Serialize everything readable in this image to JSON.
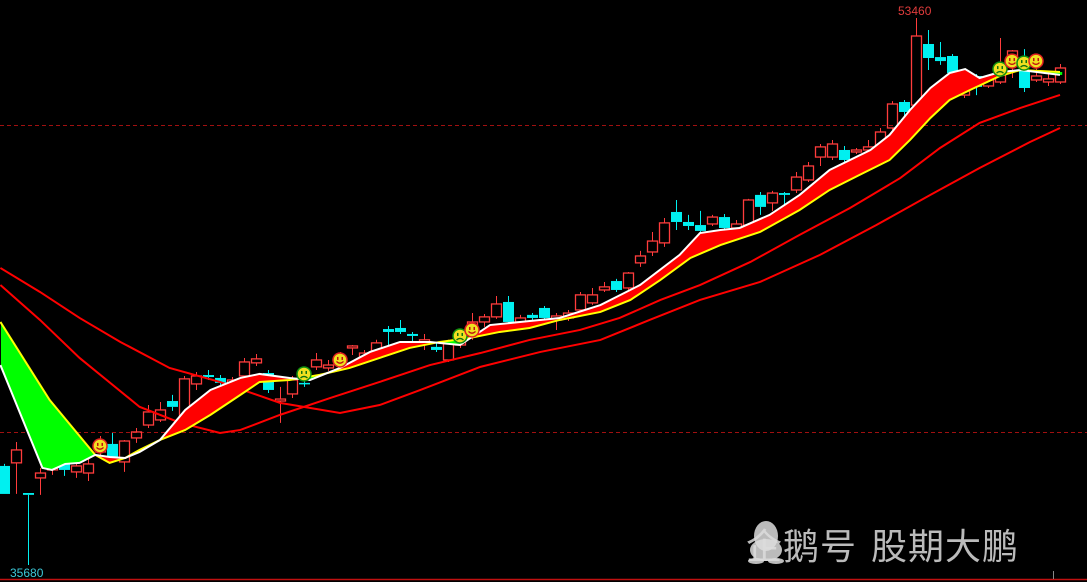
{
  "chart_data": {
    "type": "candlestick",
    "title": "",
    "labels": {
      "high": "53460",
      "low": "35680"
    },
    "price_extremes": {
      "high": 53460,
      "low": 35680
    },
    "reference_levels": [
      49980,
      40005
    ],
    "colors": {
      "up": "#ff3c3c",
      "down": "#00f0f0",
      "ma_short": "#ffffff",
      "ma_mid": "#ffff00",
      "ma_long": "#ff0000",
      "fill_up": "#ff0000",
      "fill_down": "#00ff00",
      "ref_line": "#a01010"
    },
    "candles": [
      [
        38900,
        37990,
        38965,
        37990
      ],
      [
        39000,
        39420,
        39680,
        37990
      ],
      [
        38020,
        37960,
        38020,
        35680
      ],
      [
        38510,
        38670,
        38835,
        37960
      ],
      [
        38770,
        39095,
        39260,
        38610
      ],
      [
        39030,
        38770,
        39160,
        38575
      ],
      [
        38705,
        38900,
        39030,
        38510
      ],
      [
        38670,
        38965,
        39130,
        38410
      ],
      [
        39355,
        39680,
        39875,
        39160
      ],
      [
        39615,
        39095,
        39970,
        39000
      ],
      [
        39030,
        39710,
        39745,
        38705
      ],
      [
        39810,
        40005,
        40135,
        39650
      ],
      [
        40230,
        40655,
        40880,
        40135
      ],
      [
        40395,
        40720,
        40980,
        40330
      ],
      [
        41010,
        40820,
        41210,
        40690
      ],
      [
        40200,
        41730,
        41825,
        40070
      ],
      [
        41565,
        41825,
        41955,
        41370
      ],
      [
        41855,
        41790,
        42020,
        41695
      ],
      [
        41760,
        41600,
        41855,
        41500
      ],
      [
        41530,
        41695,
        41790,
        41370
      ],
      [
        41825,
        42280,
        42410,
        41630
      ],
      [
        42250,
        42380,
        42540,
        42150
      ],
      [
        41920,
        41370,
        42020,
        41270
      ],
      [
        41010,
        41075,
        41470,
        40300
      ],
      [
        41240,
        41695,
        41825,
        41110
      ],
      [
        41600,
        41565,
        41760,
        41470
      ],
      [
        42120,
        42345,
        42570,
        42020
      ],
      [
        42085,
        42180,
        42345,
        41990
      ],
      [
        42280,
        42475,
        42605,
        42150
      ],
      [
        42735,
        42800,
        42830,
        42505
      ],
      [
        42345,
        42570,
        42670,
        42250
      ],
      [
        42570,
        42900,
        43000,
        42475
      ],
      [
        43350,
        43255,
        43450,
        42505
      ],
      [
        43385,
        43255,
        43645,
        43190
      ],
      [
        43190,
        43125,
        43255,
        42900
      ],
      [
        42930,
        43000,
        43190,
        42670
      ],
      [
        42770,
        42670,
        42900,
        42605
      ],
      [
        42345,
        42930,
        43000,
        42280
      ],
      [
        42830,
        43060,
        43160,
        42735
      ],
      [
        43125,
        43580,
        43870,
        43000
      ],
      [
        43580,
        43745,
        43840,
        43420
      ],
      [
        43745,
        44165,
        44425,
        43680
      ],
      [
        44230,
        43580,
        44425,
        43450
      ],
      [
        43580,
        43710,
        43810,
        43480
      ],
      [
        43810,
        43710,
        43870,
        43610
      ],
      [
        44035,
        43710,
        44100,
        43645
      ],
      [
        43645,
        43775,
        43870,
        43320
      ],
      [
        43710,
        43870,
        43970,
        43610
      ],
      [
        43970,
        44460,
        44555,
        43905
      ],
      [
        44200,
        44460,
        44685,
        44135
      ],
      [
        44620,
        44720,
        44880,
        44555
      ],
      [
        44910,
        44620,
        44980,
        44555
      ],
      [
        44685,
        45170,
        45205,
        44620
      ],
      [
        45500,
        45725,
        45890,
        45370
      ],
      [
        45855,
        46210,
        46505,
        45725
      ],
      [
        46150,
        46800,
        46960,
        46020
      ],
      [
        47155,
        46830,
        47545,
        46570
      ],
      [
        46830,
        46700,
        47060,
        46570
      ],
      [
        46730,
        46540,
        47190,
        46470
      ],
      [
        46765,
        46990,
        47060,
        46700
      ],
      [
        46990,
        46635,
        47090,
        46570
      ],
      [
        46635,
        46765,
        46895,
        46570
      ],
      [
        46730,
        47545,
        47580,
        46670
      ],
      [
        47710,
        47320,
        47805,
        47060
      ],
      [
        47450,
        47770,
        47840,
        47190
      ],
      [
        47770,
        47710,
        47805,
        47380
      ],
      [
        47870,
        48290,
        48455,
        47770
      ],
      [
        48195,
        48650,
        48780,
        48130
      ],
      [
        48940,
        49270,
        49365,
        48650
      ],
      [
        48940,
        49365,
        49495,
        48845
      ],
      [
        49170,
        48845,
        49300,
        48750
      ],
      [
        49105,
        49170,
        49235,
        49040
      ],
      [
        49170,
        49270,
        49495,
        49105
      ],
      [
        49270,
        49755,
        49885,
        49170
      ],
      [
        49885,
        50665,
        50760,
        49820
      ],
      [
        50730,
        50405,
        50795,
        50145
      ],
      [
        50630,
        52875,
        53460,
        50535
      ],
      [
        52615,
        52160,
        53070,
        51770
      ],
      [
        52190,
        52060,
        52680,
        51935
      ],
      [
        52225,
        51670,
        52290,
        51575
      ],
      [
        50955,
        51510,
        51705,
        50860
      ],
      [
        51575,
        51220,
        51640,
        50955
      ],
      [
        51250,
        51445,
        51605,
        51185
      ],
      [
        51380,
        51835,
        52810,
        51315
      ],
      [
        52060,
        52390,
        52420,
        51510
      ],
      [
        51770,
        51185,
        52450,
        51055
      ],
      [
        51445,
        51575,
        51900,
        51380
      ],
      [
        51380,
        51480,
        51735,
        51250
      ],
      [
        51380,
        51835,
        51965,
        51315
      ]
    ],
    "candle_fields": [
      "open",
      "close",
      "high",
      "low"
    ],
    "ma_short": [
      [
        0.7,
        42180
      ],
      [
        4.2,
        38835
      ],
      [
        5.0,
        38770
      ],
      [
        6.1,
        38965
      ],
      [
        7.3,
        39000
      ],
      [
        8.6,
        39260
      ],
      [
        9.8,
        39190
      ],
      [
        11.1,
        39160
      ],
      [
        12.3,
        39355
      ],
      [
        14.0,
        39745
      ],
      [
        16.1,
        40720
      ],
      [
        18.2,
        41370
      ],
      [
        20.7,
        41760
      ],
      [
        22.3,
        41890
      ],
      [
        24.8,
        41760
      ],
      [
        26.5,
        41695
      ],
      [
        29.0,
        42085
      ],
      [
        31.5,
        42605
      ],
      [
        34.0,
        42930
      ],
      [
        36.5,
        42930
      ],
      [
        39.0,
        42830
      ],
      [
        41.5,
        43480
      ],
      [
        44.0,
        43580
      ],
      [
        47.3,
        43710
      ],
      [
        50.7,
        44130
      ],
      [
        54.0,
        44780
      ],
      [
        57.3,
        45760
      ],
      [
        59.0,
        46470
      ],
      [
        60.7,
        46570
      ],
      [
        62.3,
        46635
      ],
      [
        64.8,
        47060
      ],
      [
        67.3,
        47710
      ],
      [
        69.8,
        48520
      ],
      [
        73.2,
        49170
      ],
      [
        74.8,
        49660
      ],
      [
        76.5,
        50470
      ],
      [
        78.2,
        51185
      ],
      [
        79.8,
        51670
      ],
      [
        81.1,
        51800
      ],
      [
        82.3,
        51510
      ],
      [
        84.0,
        51705
      ],
      [
        85.7,
        51770
      ],
      [
        89.0,
        51610
      ]
    ],
    "ma_mid": [
      [
        0.7,
        43580
      ],
      [
        4.8,
        41045
      ],
      [
        8.6,
        39260
      ],
      [
        9.8,
        39000
      ],
      [
        11.1,
        39160
      ],
      [
        12.3,
        39420
      ],
      [
        14.0,
        39745
      ],
      [
        16.1,
        40070
      ],
      [
        18.2,
        40560
      ],
      [
        20.7,
        41210
      ],
      [
        22.3,
        41630
      ],
      [
        24.8,
        41695
      ],
      [
        27.3,
        41860
      ],
      [
        29.8,
        42085
      ],
      [
        32.3,
        42410
      ],
      [
        34.8,
        42735
      ],
      [
        37.3,
        42930
      ],
      [
        39.8,
        43060
      ],
      [
        42.3,
        43255
      ],
      [
        44.8,
        43385
      ],
      [
        47.3,
        43645
      ],
      [
        50.7,
        43905
      ],
      [
        53.2,
        44295
      ],
      [
        55.7,
        44945
      ],
      [
        58.2,
        45660
      ],
      [
        60.7,
        46080
      ],
      [
        64.0,
        46505
      ],
      [
        67.3,
        47220
      ],
      [
        69.8,
        47870
      ],
      [
        72.3,
        48360
      ],
      [
        74.8,
        48845
      ],
      [
        76.5,
        49495
      ],
      [
        78.2,
        50210
      ],
      [
        79.8,
        50795
      ],
      [
        81.5,
        51120
      ],
      [
        84.0,
        51575
      ],
      [
        85.7,
        51770
      ],
      [
        89.0,
        51705
      ]
    ],
    "ma_long_1": [
      [
        0.7,
        44780
      ],
      [
        4.0,
        43645
      ],
      [
        7.3,
        42410
      ],
      [
        12.3,
        40820
      ],
      [
        15.7,
        40300
      ],
      [
        19.0,
        39970
      ],
      [
        20.7,
        40070
      ],
      [
        24.0,
        40560
      ],
      [
        28.2,
        41110
      ],
      [
        32.3,
        41630
      ],
      [
        36.5,
        42180
      ],
      [
        40.7,
        42570
      ],
      [
        44.8,
        42995
      ],
      [
        49.0,
        43320
      ],
      [
        52.3,
        43710
      ],
      [
        55.7,
        44295
      ],
      [
        59.0,
        44780
      ],
      [
        63.2,
        45530
      ],
      [
        67.3,
        46410
      ],
      [
        71.5,
        47285
      ],
      [
        75.7,
        48260
      ],
      [
        79.0,
        49235
      ],
      [
        82.3,
        50050
      ],
      [
        85.7,
        50535
      ],
      [
        89.0,
        50960
      ]
    ],
    "ma_long_2": [
      [
        0.7,
        45335
      ],
      [
        4.0,
        44555
      ],
      [
        7.3,
        43710
      ],
      [
        10.7,
        42930
      ],
      [
        14.8,
        42085
      ],
      [
        19.0,
        41630
      ],
      [
        24.0,
        40950
      ],
      [
        29.0,
        40620
      ],
      [
        32.3,
        40880
      ],
      [
        35.7,
        41370
      ],
      [
        40.7,
        42120
      ],
      [
        45.7,
        42605
      ],
      [
        50.7,
        42995
      ],
      [
        54.8,
        43645
      ],
      [
        59.0,
        44295
      ],
      [
        64.0,
        44880
      ],
      [
        69.0,
        45760
      ],
      [
        73.7,
        46730
      ],
      [
        78.2,
        47710
      ],
      [
        82.3,
        48585
      ],
      [
        86.5,
        49430
      ],
      [
        89.0,
        49885
      ]
    ],
    "signals": [
      {
        "candle": 9,
        "price": 39550,
        "kind": "happy"
      },
      {
        "candle": 26,
        "price": 41890,
        "kind": "sad"
      },
      {
        "candle": 29,
        "price": 42345,
        "kind": "happy"
      },
      {
        "candle": 39,
        "price": 43125,
        "kind": "sad"
      },
      {
        "candle": 40,
        "price": 43320,
        "kind": "happy"
      },
      {
        "candle": 84,
        "price": 51800,
        "kind": "sad"
      },
      {
        "candle": 85,
        "price": 52060,
        "kind": "happy"
      },
      {
        "candle": 86,
        "price": 51995,
        "kind": "sad"
      },
      {
        "candle": 87,
        "price": 52060,
        "kind": "happy"
      }
    ]
  },
  "watermark": {
    "platform": "企鹅号",
    "author": "股期大鹏"
  }
}
